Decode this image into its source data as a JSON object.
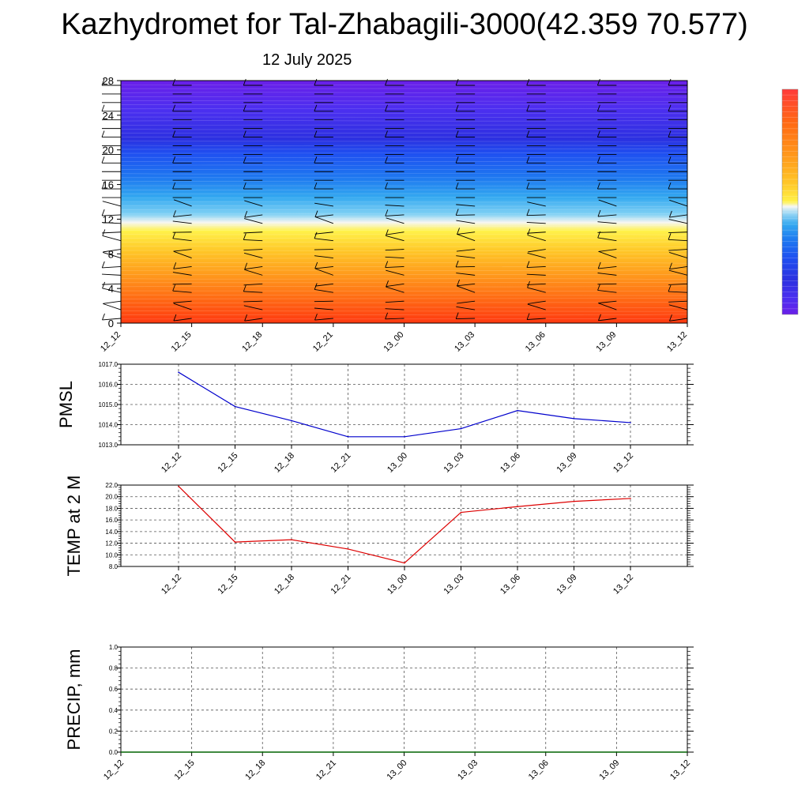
{
  "title": "Kazhydromet for Tal-Zhabagili-3000(42.359 70.577)",
  "date_label": "12 July 2025",
  "colors": {
    "pmsl_line": "#0000cc",
    "temp_line": "#dd0000",
    "precip_line": "#006400",
    "grid": "#555555",
    "barb": "#000000"
  },
  "chart_data": [
    {
      "id": "cross_section",
      "type": "heatmap",
      "title": "",
      "xlabel": "",
      "ylabel": "",
      "x_tick_labels": [
        "12_12",
        "12_15",
        "12_18",
        "12_21",
        "13_00",
        "13_03",
        "13_06",
        "13_09",
        "13_12"
      ],
      "y_ticks": [
        0,
        4,
        8,
        12,
        16,
        20,
        24,
        28
      ],
      "ylim": [
        0,
        28
      ],
      "colormap": [
        "#6a1fe8",
        "#4c2ff0",
        "#2c30e0",
        "#1f4ff0",
        "#1e78f0",
        "#33a8f0",
        "#7fd0f4",
        "#f6f6f2",
        "#fff24a",
        "#ffc828",
        "#ff9a1c",
        "#ff6a14",
        "#ff3810"
      ],
      "wind_barbs": true,
      "legend": "right colorbar, no labels"
    },
    {
      "id": "pmsl",
      "type": "line",
      "ylabel": "PMSL",
      "x": [
        "12_12",
        "12_15",
        "12_18",
        "12_21",
        "13_00",
        "13_03",
        "13_06",
        "13_09",
        "13_12"
      ],
      "values": [
        1016.6,
        1014.9,
        1014.2,
        1013.4,
        1013.4,
        1013.8,
        1014.7,
        1014.3,
        1014.1
      ],
      "ylim": [
        1013.0,
        1017.0
      ],
      "y_tick_labels": [
        "1013.0",
        "1014.0",
        "1015.0",
        "1016.0",
        "1017.0"
      ],
      "grid": true
    },
    {
      "id": "temp",
      "type": "line",
      "ylabel": "TEMP at 2 M",
      "x": [
        "12_12",
        "12_15",
        "12_18",
        "12_21",
        "13_00",
        "13_03",
        "13_06",
        "13_09",
        "13_12"
      ],
      "values": [
        21.8,
        12.2,
        12.6,
        11.0,
        8.6,
        17.3,
        18.3,
        19.2,
        19.7
      ],
      "ylim": [
        8.0,
        22.0
      ],
      "y_tick_labels": [
        "8.0",
        "10.0",
        "12.0",
        "14.0",
        "16.0",
        "18.0",
        "20.0",
        "22.0"
      ],
      "grid": true
    },
    {
      "id": "precip",
      "type": "line",
      "ylabel": "PRECIP, mm",
      "x_tick_labels": [
        "12_12",
        "12_15",
        "12_18",
        "12_21",
        "13_00",
        "13_03",
        "13_06",
        "13_09",
        "13_12"
      ],
      "values": [
        0,
        0,
        0,
        0,
        0,
        0,
        0,
        0,
        0
      ],
      "ylim": [
        0.0,
        1.0
      ],
      "y_tick_labels": [
        "0.0",
        "0.2",
        "0.4",
        "0.6",
        "0.8",
        "1.0"
      ],
      "grid": true
    }
  ]
}
